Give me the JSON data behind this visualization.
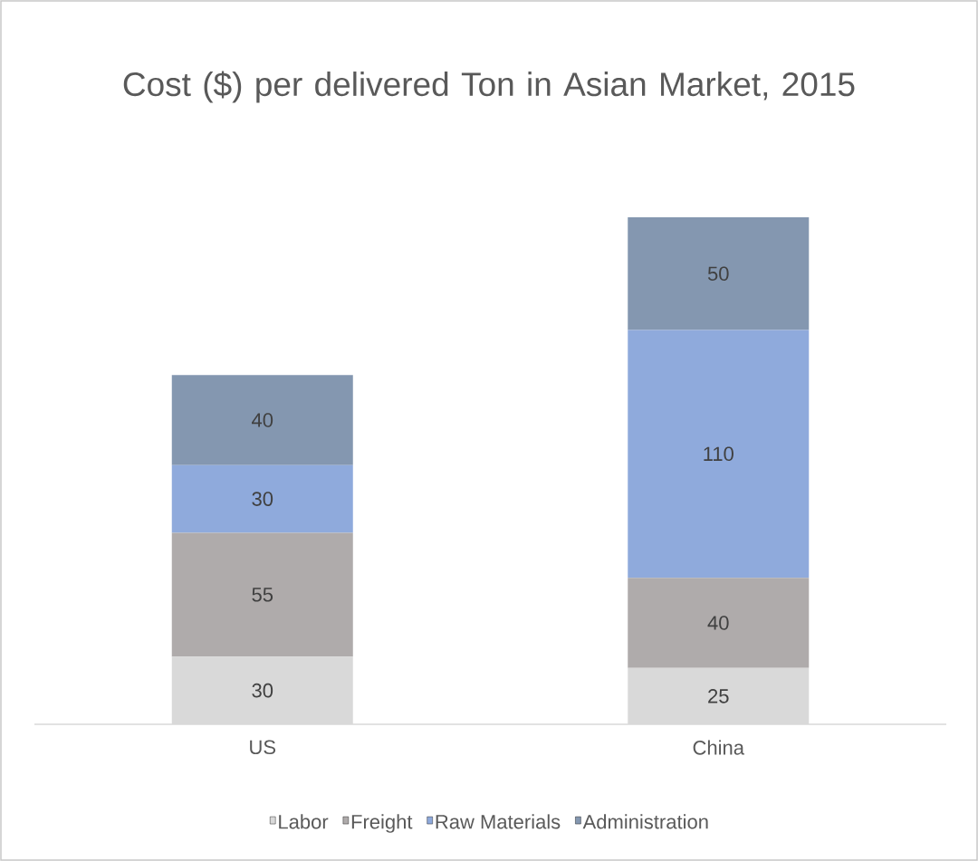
{
  "chart_data": {
    "type": "bar",
    "title": "Cost ($) per delivered Ton in Asian Market, 2015",
    "categories": [
      "US",
      "China"
    ],
    "series": [
      {
        "name": "Labor",
        "color": "#d9d9d9",
        "values": [
          30,
          25
        ]
      },
      {
        "name": "Freight",
        "color": "#afabab",
        "values": [
          55,
          40
        ]
      },
      {
        "name": "Raw Materials",
        "color": "#8faadc",
        "values": [
          30,
          110
        ]
      },
      {
        "name": "Administration",
        "color": "#8497b0",
        "values": [
          40,
          50
        ]
      }
    ],
    "stacked": true,
    "data_labels": true,
    "legend": "bottom"
  }
}
